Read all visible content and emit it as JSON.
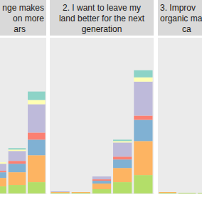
{
  "chart_data": [
    {
      "type": "bar",
      "stacked": true,
      "tick_labels": false,
      "title": [
        "nge makes",
        "on more",
        "ars"
      ],
      "categories": [
        null,
        null,
        null
      ],
      "ylim": [
        0,
        110
      ],
      "series": [
        {
          "color": "#b3de69",
          "values": [
            5,
            6,
            8
          ]
        },
        {
          "color": "#fdb462",
          "values": [
            6,
            9,
            19
          ]
        },
        {
          "color": "#80b1d3",
          "values": [
            4,
            6,
            11
          ]
        },
        {
          "color": "#fb8072",
          "values": [
            1,
            2,
            5
          ]
        },
        {
          "color": "#bebada",
          "values": [
            5,
            7,
            20
          ]
        },
        {
          "color": "#ffffb3",
          "values": [
            1,
            1,
            3
          ]
        },
        {
          "color": "#8dd3c7",
          "values": [
            0,
            1,
            6
          ]
        }
      ]
    },
    {
      "type": "bar",
      "stacked": true,
      "tick_labels": false,
      "title": [
        "2.  I want to leave my",
        "land better for the next",
        "generation"
      ],
      "categories": [
        null,
        null,
        null,
        null,
        null
      ],
      "ylim": [
        0,
        110
      ],
      "series": [
        {
          "color": "#b3de69",
          "values": [
            0.5,
            0.5,
            3,
            8,
            13
          ]
        },
        {
          "color": "#fdb462",
          "values": [
            0.5,
            0.5,
            4,
            10,
            24
          ]
        },
        {
          "color": "#80b1d3",
          "values": [
            0,
            0,
            2,
            6,
            15
          ]
        },
        {
          "color": "#fb8072",
          "values": [
            0,
            0,
            1,
            2,
            3
          ]
        },
        {
          "color": "#bebada",
          "values": [
            0.5,
            0,
            2,
            10,
            24
          ]
        },
        {
          "color": "#ffffb3",
          "values": [
            0,
            0,
            0,
            1,
            3
          ]
        },
        {
          "color": "#8dd3c7",
          "values": [
            0,
            0,
            0,
            1,
            5
          ]
        }
      ]
    },
    {
      "type": "bar",
      "stacked": true,
      "tick_labels": false,
      "title": [
        "3.  Improv",
        "organic ma",
        "ca"
      ],
      "categories": [
        null,
        null,
        null
      ],
      "ylim": [
        0,
        110
      ],
      "series": [
        {
          "color": "#b3de69",
          "values": [
            0.5,
            0.5,
            0.5
          ]
        },
        {
          "color": "#fdb462",
          "values": [
            0.5,
            0,
            0
          ]
        },
        {
          "color": "#80b1d3",
          "values": [
            0,
            0,
            0
          ]
        },
        {
          "color": "#fb8072",
          "values": [
            0,
            0,
            0
          ]
        },
        {
          "color": "#bebada",
          "values": [
            0,
            0,
            0
          ]
        },
        {
          "color": "#ffffb3",
          "values": [
            0,
            0,
            0
          ]
        },
        {
          "color": "#8dd3c7",
          "values": [
            0,
            0,
            0
          ]
        }
      ]
    }
  ]
}
